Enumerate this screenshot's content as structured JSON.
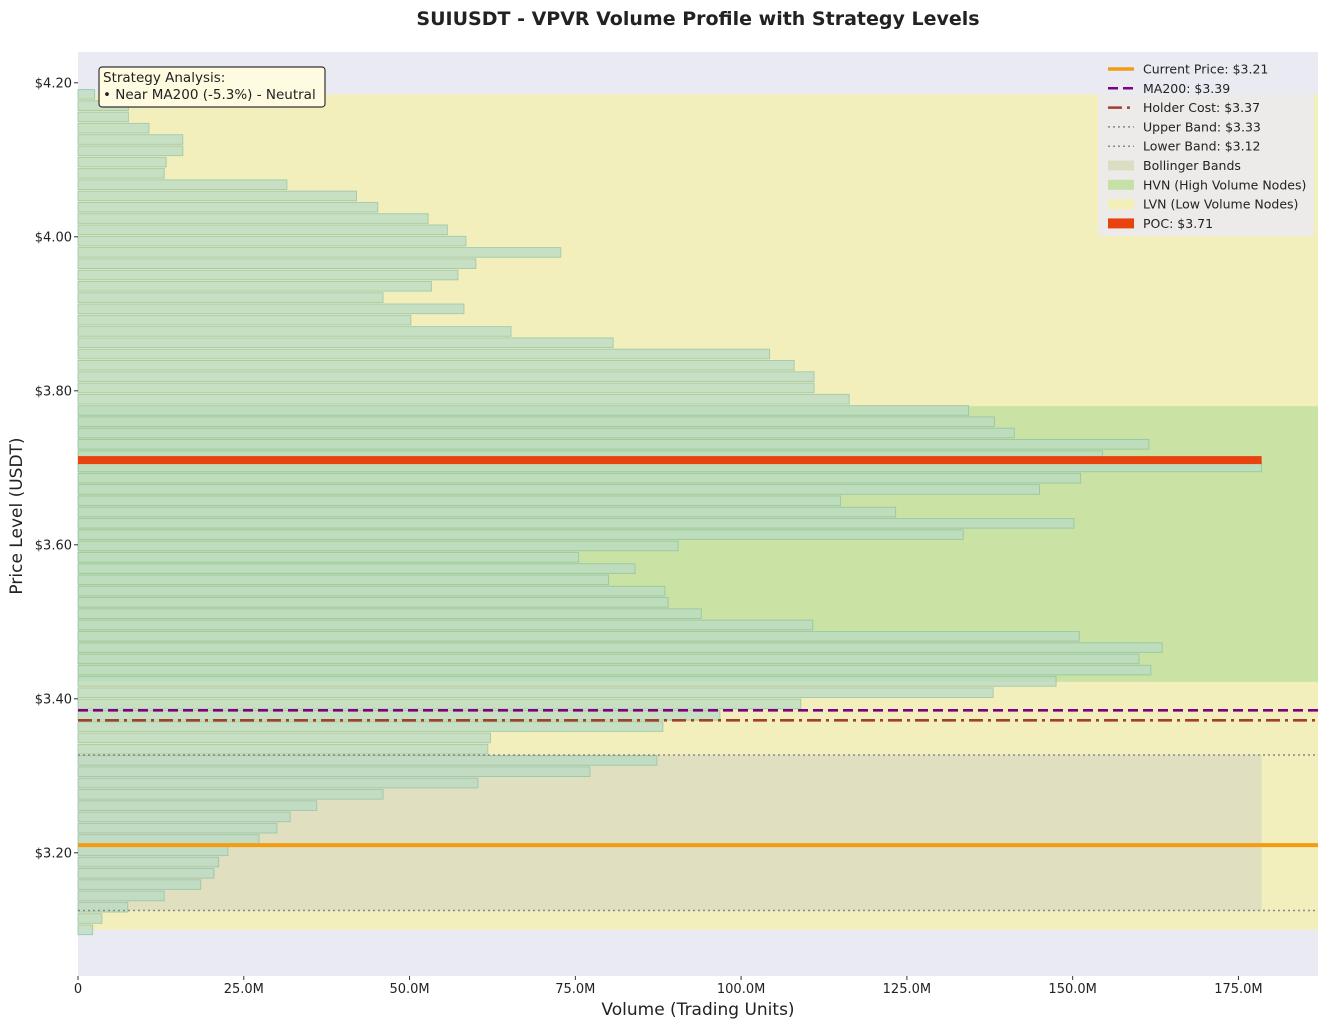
{
  "chart_data": {
    "type": "bar",
    "orientation": "horizontal",
    "title": "SUIUSDT - VPVR Volume Profile with Strategy Levels",
    "xlabel": "Volume (Trading Units)",
    "ylabel": "Price Level (USDT)",
    "xlim": [
      0,
      187000000
    ],
    "ylim": [
      3.04,
      4.24
    ],
    "x_ticks": [
      {
        "value": 0,
        "label": "0"
      },
      {
        "value": 25000000,
        "label": "25.0M"
      },
      {
        "value": 50000000,
        "label": "50.0M"
      },
      {
        "value": 75000000,
        "label": "75.0M"
      },
      {
        "value": 100000000,
        "label": "100.0M"
      },
      {
        "value": 125000000,
        "label": "125.0M"
      },
      {
        "value": 150000000,
        "label": "150.0M"
      },
      {
        "value": 175000000,
        "label": "175.0M"
      }
    ],
    "y_ticks": [
      {
        "value": 3.2,
        "label": "$3.20"
      },
      {
        "value": 3.4,
        "label": "$3.40"
      },
      {
        "value": 3.6,
        "label": "$3.60"
      },
      {
        "value": 3.8,
        "label": "$3.80"
      },
      {
        "value": 4.0,
        "label": "$4.00"
      },
      {
        "value": 4.2,
        "label": "$4.20"
      }
    ],
    "bar_price_range": [
      3.1,
      4.185
    ],
    "bar_height": 0.0125,
    "volumes_millions": [
      2.2,
      3.6,
      7.5,
      13,
      18.5,
      20.5,
      21.2,
      22.6,
      27.3,
      30,
      32,
      36,
      46,
      60.3,
      77.2,
      87.3,
      61.8,
      62.2,
      88.2,
      96.8,
      109,
      138,
      147.5,
      161.8,
      160,
      163.5,
      151,
      110.8,
      94,
      89,
      88.5,
      80,
      84,
      75.5,
      90.5,
      133.5,
      150.2,
      123.3,
      115,
      145,
      151.2,
      178.5,
      154.5,
      161.5,
      141.2,
      138.2,
      134.3,
      116.3,
      111,
      111,
      108,
      104.3,
      80.7,
      65.3,
      50.2,
      58.2,
      46,
      53.3,
      57.3,
      60,
      72.8,
      58.5,
      55.7,
      52.8,
      45.2,
      42,
      31.5,
      13,
      13.3,
      15.8,
      15.8,
      10.7,
      7.6,
      7.6,
      2.5
    ],
    "bar_color": "#b9dcc6",
    "bar_edge_color": "#8fc0a4",
    "poc": {
      "price": 3.71,
      "volume_millions": 178.5,
      "label": "POC: $3.71",
      "color": "#e8430f"
    },
    "levels": [
      {
        "name": "Current Price",
        "value": 3.21,
        "label": "Current Price: $3.21",
        "color": "#f39c12",
        "style": "solid"
      },
      {
        "name": "MA200",
        "value": 3.385,
        "label": "MA200: $3.39",
        "color": "#800080",
        "style": "dashed"
      },
      {
        "name": "Holder Cost",
        "value": 3.372,
        "label": "Holder Cost: $3.37",
        "color": "#a0402d",
        "style": "dashdot"
      },
      {
        "name": "Upper Band",
        "value": 3.327,
        "label": "Upper Band: $3.33",
        "color": "#888888",
        "style": "dotted"
      },
      {
        "name": "Lower Band",
        "value": 3.125,
        "label": "Lower Band: $3.12",
        "color": "#888888",
        "style": "dotted"
      }
    ],
    "zones": [
      {
        "name": "LVN",
        "y_range": [
          3.1,
          4.185
        ],
        "label": "LVN (Low Volume Nodes)",
        "color": "#f4f0b4"
      },
      {
        "name": "HVN",
        "y_range": [
          3.422,
          3.78
        ],
        "label": "HVN (High Volume Nodes)",
        "color": "#c2e0a0"
      },
      {
        "name": "Bollinger Bands",
        "y_range": [
          3.125,
          3.327
        ],
        "x_max": 178.5,
        "label": "Bollinger Bands",
        "color": "#dcdcc0"
      }
    ],
    "legend_placement": "top-right",
    "grid": false,
    "plot_background": "#eaeaf2"
  },
  "annotation": {
    "title": "Strategy Analysis:",
    "line": "• Near MA200 (-5.3%) - Neutral"
  }
}
